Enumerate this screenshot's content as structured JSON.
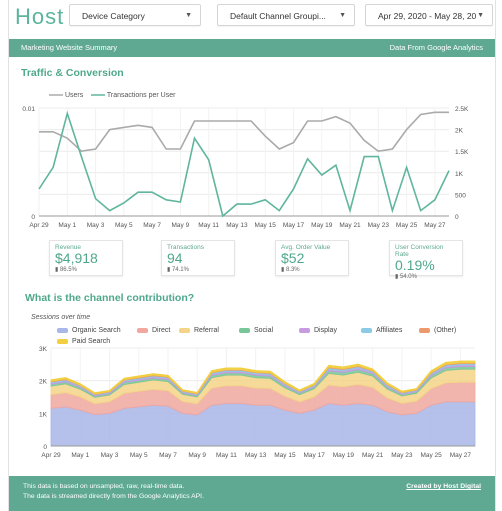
{
  "header": {
    "logo": "Host",
    "filters": [
      {
        "label": "Device Category"
      },
      {
        "label": "Default Channel Groupi..."
      },
      {
        "label": "Apr 29, 2020 - May 28, 20"
      }
    ],
    "caret": "▼"
  },
  "banner": {
    "left": "Marketing Website Summary",
    "right": "Data From Google Analytics"
  },
  "traffic": {
    "title": "Traffic & Conversion",
    "legend": [
      "Users",
      "Transactions per User"
    ]
  },
  "kpis": [
    {
      "label": "Revenue",
      "value": "$4,918",
      "change": "▮ 86.5%"
    },
    {
      "label": "Transactions",
      "value": "94",
      "change": "▮ 74.1%"
    },
    {
      "label": "Avg. Order Value",
      "value": "$52",
      "change": "▮ 8.3%"
    },
    {
      "label": "User Conversion Rate",
      "value": "0.19%",
      "change": "▮ 54.0%"
    }
  ],
  "channel": {
    "title": "What is the channel contribution?",
    "subtitle": "Sessions over time"
  },
  "footer": {
    "line1": "This data is based on unsampled, raw, real-time data.",
    "line2": "The data is streamed directly from the Google Analytics API.",
    "credit": "Created by Host Digital"
  },
  "colors": {
    "accent": "#5fa892",
    "users": "#aaaaaa",
    "transactions": "#5fb59d"
  },
  "chart_data": [
    {
      "type": "line",
      "x": [
        "Apr 29",
        "Apr 30",
        "May 1",
        "May 2",
        "May 3",
        "May 4",
        "May 5",
        "May 6",
        "May 7",
        "May 8",
        "May 9",
        "May 10",
        "May 11",
        "May 12",
        "May 13",
        "May 14",
        "May 15",
        "May 16",
        "May 17",
        "May 18",
        "May 19",
        "May 20",
        "May 21",
        "May 22",
        "May 23",
        "May 24",
        "May 25",
        "May 26",
        "May 27",
        "May 28"
      ],
      "x_tick_labels": [
        "Apr 29",
        "May 1",
        "May 3",
        "May 5",
        "May 7",
        "May 9",
        "May 11",
        "May 13",
        "May 15",
        "May 17",
        "May 19",
        "May 21",
        "May 23",
        "May 25",
        "May 27"
      ],
      "series": [
        {
          "name": "Users",
          "axis": "right",
          "color": "#aaaaaa",
          "values": [
            1950,
            1950,
            1800,
            1500,
            1550,
            2000,
            2050,
            2100,
            2050,
            1550,
            1550,
            2200,
            2200,
            2200,
            2200,
            2200,
            1850,
            1550,
            1700,
            2200,
            2200,
            2300,
            2150,
            1750,
            1500,
            1550,
            2000,
            2350,
            2400,
            2400
          ]
        },
        {
          "name": "Transactions per User",
          "axis": "left",
          "color": "#5fb59d",
          "values": [
            0.0025,
            0.0045,
            0.0095,
            0.0055,
            0.0016,
            0.0005,
            0.0012,
            0.0022,
            0.0022,
            0.0015,
            0.0013,
            0.0072,
            0.0052,
            0.0,
            0.0011,
            0.0011,
            0.0015,
            0.0005,
            0.0025,
            0.0053,
            0.0038,
            0.0047,
            0.0005,
            0.0055,
            0.0055,
            0.0005,
            0.0045,
            0.0005,
            0.0015,
            0.0042
          ]
        }
      ],
      "ylim_left": [
        0,
        0.01
      ],
      "yticks_left": [
        "0",
        "0.01"
      ],
      "ylim_right": [
        0,
        2500
      ],
      "yticks_right": [
        "0",
        "500",
        "1K",
        "1.5K",
        "2K",
        "2.5K"
      ],
      "grid": true,
      "legend": "top"
    },
    {
      "type": "area",
      "stacked": true,
      "title": "Sessions over time",
      "x": [
        "Apr 29",
        "Apr 30",
        "May 1",
        "May 2",
        "May 3",
        "May 4",
        "May 5",
        "May 6",
        "May 7",
        "May 8",
        "May 9",
        "May 10",
        "May 11",
        "May 12",
        "May 13",
        "May 14",
        "May 15",
        "May 16",
        "May 17",
        "May 18",
        "May 19",
        "May 20",
        "May 21",
        "May 22",
        "May 23",
        "May 24",
        "May 25",
        "May 26",
        "May 27",
        "May 28"
      ],
      "x_tick_labels": [
        "Apr 29",
        "May 1",
        "May 3",
        "May 5",
        "May 7",
        "May 9",
        "May 11",
        "May 13",
        "May 15",
        "May 17",
        "May 19",
        "May 21",
        "May 23",
        "May 25",
        "May 27"
      ],
      "ylim": [
        0,
        3000
      ],
      "yticks": [
        "0",
        "1K",
        "2K",
        "3K"
      ],
      "series": [
        {
          "name": "Organic Search",
          "color": "#a9b6e8",
          "values": [
            1150,
            1200,
            1100,
            960,
            1000,
            1150,
            1200,
            1250,
            1220,
            1000,
            950,
            1250,
            1300,
            1300,
            1250,
            1250,
            1100,
            1000,
            1100,
            1300,
            1250,
            1300,
            1250,
            1050,
            950,
            1000,
            1250,
            1350,
            1350,
            1350
          ]
        },
        {
          "name": "Direct",
          "color": "#f0a8a0",
          "values": [
            420,
            430,
            400,
            330,
            350,
            460,
            470,
            480,
            470,
            360,
            340,
            520,
            540,
            540,
            520,
            510,
            420,
            350,
            400,
            560,
            560,
            580,
            540,
            420,
            350,
            370,
            500,
            580,
            600,
            600
          ]
        },
        {
          "name": "Referral",
          "color": "#f3d488",
          "values": [
            260,
            270,
            240,
            200,
            210,
            270,
            280,
            290,
            280,
            220,
            210,
            320,
            330,
            330,
            320,
            310,
            260,
            220,
            250,
            360,
            360,
            380,
            350,
            270,
            230,
            240,
            330,
            380,
            400,
            400
          ]
        },
        {
          "name": "Social",
          "color": "#78c79a",
          "values": [
            60,
            60,
            50,
            40,
            40,
            60,
            60,
            60,
            60,
            45,
            40,
            70,
            70,
            70,
            70,
            70,
            55,
            45,
            50,
            80,
            80,
            80,
            70,
            60,
            50,
            50,
            70,
            80,
            80,
            80
          ]
        },
        {
          "name": "Display",
          "color": "#c69be0",
          "values": [
            40,
            40,
            35,
            30,
            30,
            40,
            40,
            40,
            40,
            30,
            30,
            45,
            45,
            45,
            45,
            45,
            40,
            30,
            35,
            50,
            50,
            50,
            45,
            40,
            30,
            30,
            45,
            50,
            50,
            50
          ]
        },
        {
          "name": "Affiliates",
          "color": "#8ccbe6",
          "values": [
            30,
            30,
            25,
            20,
            20,
            30,
            30,
            30,
            30,
            20,
            20,
            35,
            35,
            35,
            35,
            35,
            30,
            20,
            25,
            40,
            40,
            40,
            35,
            30,
            20,
            20,
            35,
            40,
            40,
            40
          ]
        },
        {
          "name": "(Other)",
          "color": "#ec9a6b",
          "values": [
            20,
            20,
            15,
            15,
            15,
            20,
            20,
            20,
            20,
            15,
            15,
            20,
            20,
            20,
            20,
            20,
            20,
            15,
            15,
            25,
            25,
            25,
            20,
            20,
            15,
            15,
            20,
            25,
            25,
            25
          ]
        },
        {
          "name": "Paid Search",
          "color": "#f2cf3e",
          "values": [
            40,
            40,
            35,
            30,
            30,
            40,
            40,
            40,
            40,
            30,
            30,
            45,
            45,
            45,
            45,
            45,
            40,
            30,
            35,
            50,
            50,
            50,
            45,
            40,
            30,
            30,
            45,
            50,
            50,
            50
          ]
        }
      ],
      "grid": true,
      "legend": "top-left"
    }
  ]
}
